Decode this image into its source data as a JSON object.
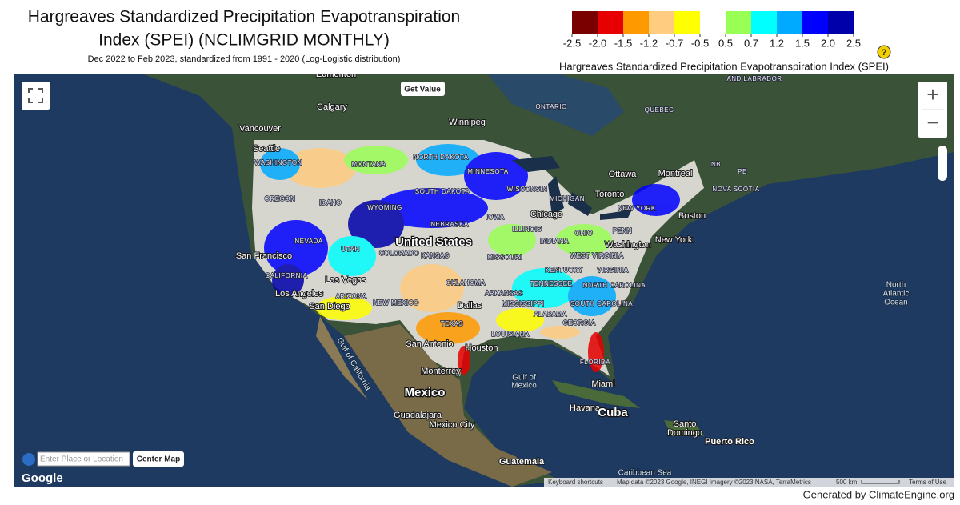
{
  "header": {
    "title": [
      "Hargreaves Standardized Precipitation Evapotranspiration",
      "Index (SPEI) (NCLIMGRID MONTHLY)"
    ],
    "subtitle": "Dec 2022 to Feb 2023, standardized from 1991 - 2020 (Log-Logistic distribution)"
  },
  "legend": {
    "labels": [
      "-2.5",
      "-2.0",
      "-1.5",
      "-1.2",
      "-0.7",
      "-0.5",
      "0.5",
      "0.7",
      "1.2",
      "1.5",
      "2.0",
      "2.5"
    ],
    "colors": [
      "#7a0000",
      "#e60000",
      "#ff9900",
      "#ffcc80",
      "#ffff00",
      "#ffffff",
      "#99ff55",
      "#00ffff",
      "#00aaff",
      "#0000ff",
      "#0000aa"
    ],
    "caption": "Hargreaves Standardized Precipitation Evapotranspiration Index (SPEI)",
    "help": "?"
  },
  "map": {
    "labels": [
      "Edmonton",
      "Calgary",
      "Vancouver",
      "Seattle",
      "Winnipeg",
      "ONTARIO",
      "QUEBEC",
      "AND LABRADOR",
      "Ottawa",
      "Montreal",
      "Toronto",
      "NB",
      "PE",
      "NOVA SCOTIA",
      "Boston",
      "New York",
      "WASHINGTON",
      "MONTANA",
      "NORTH DAKOTA",
      "MINNESOTA",
      "SOUTH DAKOTA",
      "WISCONSIN",
      "MICHIGAN",
      "OREGON",
      "IDAHO",
      "WYOMING",
      "NEBRASKA",
      "IOWA",
      "Chicago",
      "ILLINOIS",
      "INDIANA",
      "OHIO",
      "PENN",
      "NEW YORK",
      "Washington",
      "WEST VIRGINIA",
      "VIRGINIA",
      "KENTUCKY",
      "NORTH CAROLINA",
      "SOUTH CAROLINA",
      "TENNESSEE",
      "GEORGIA",
      "ALABAMA",
      "MISSISSIPPI",
      "ARKANSAS",
      "LOUISIANA",
      "TEXAS",
      "OKLAHOMA",
      "KANSAS",
      "MISSOURI",
      "COLORADO",
      "UTAH",
      "NEVADA",
      "CALIFORNIA",
      "ARIZONA",
      "NEW MEXICO",
      "United States",
      "San Francisco",
      "Las Vegas",
      "Los Angeles",
      "San Diego",
      "Dallas",
      "San Antonio",
      "Houston",
      "Monterrey",
      "Mexico",
      "Guadalajara",
      "Mexico City",
      "Gulf of California",
      "Gulf of",
      "Mexico",
      "Miami",
      "FLORIDA",
      "Havana",
      "Cuba",
      "Santo",
      "Domingo",
      "Puerto Rico",
      "Guatemala",
      "Caribbean Sea",
      "North",
      "Atlantic",
      "Ocean"
    ],
    "controls": {
      "get_value": "Get Value",
      "zoom_in": "+",
      "zoom_out": "−",
      "search_placeholder": "Enter Place or Location",
      "center": "Center Map",
      "google": "Google"
    },
    "footer": [
      "Keyboard shortcuts",
      "Map data ©2023 Google, INEGI Imagery ©2023 NASA, TerraMetrics",
      "500 km",
      "Terms of Use"
    ]
  },
  "credit": "Generated by ClimateEngine.org"
}
